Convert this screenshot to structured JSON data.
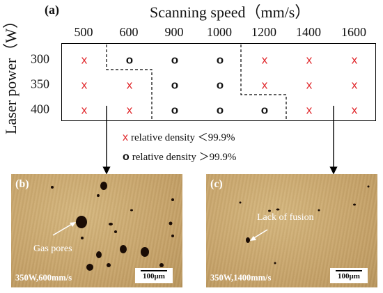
{
  "panel_a": {
    "label": "(a)",
    "x_title": "Scanning speed（mm/s）",
    "y_title": "Laser power（W）",
    "speeds": [
      "500",
      "600",
      "900",
      "1000",
      "1200",
      "1400",
      "1600"
    ],
    "powers": [
      "300",
      "350",
      "400"
    ],
    "grid": [
      [
        "x",
        "o",
        "o",
        "o",
        "x",
        "x",
        "x"
      ],
      [
        "x",
        "x",
        "o",
        "o",
        "x",
        "x",
        "x"
      ],
      [
        "x",
        "x",
        "o",
        "o",
        "o",
        "x",
        "x"
      ]
    ],
    "symbols": {
      "x": "x",
      "o": "o"
    },
    "colors": {
      "x_mark": "#e0262a",
      "o_mark": "#111111",
      "line": "#000000"
    }
  },
  "legend": {
    "x_symbol": "x",
    "x_text": "relative density ＜99.9%",
    "o_symbol": "o",
    "o_text": "relative density ＞99.9%"
  },
  "panel_b": {
    "label": "(b)",
    "annotation": "Gas pores",
    "caption": "350W,600mm/s",
    "scale": "100μm"
  },
  "panel_c": {
    "label": "(c)",
    "annotation": "Lack of fusion",
    "caption": "350W,1400mm/s",
    "scale": "100μm"
  }
}
